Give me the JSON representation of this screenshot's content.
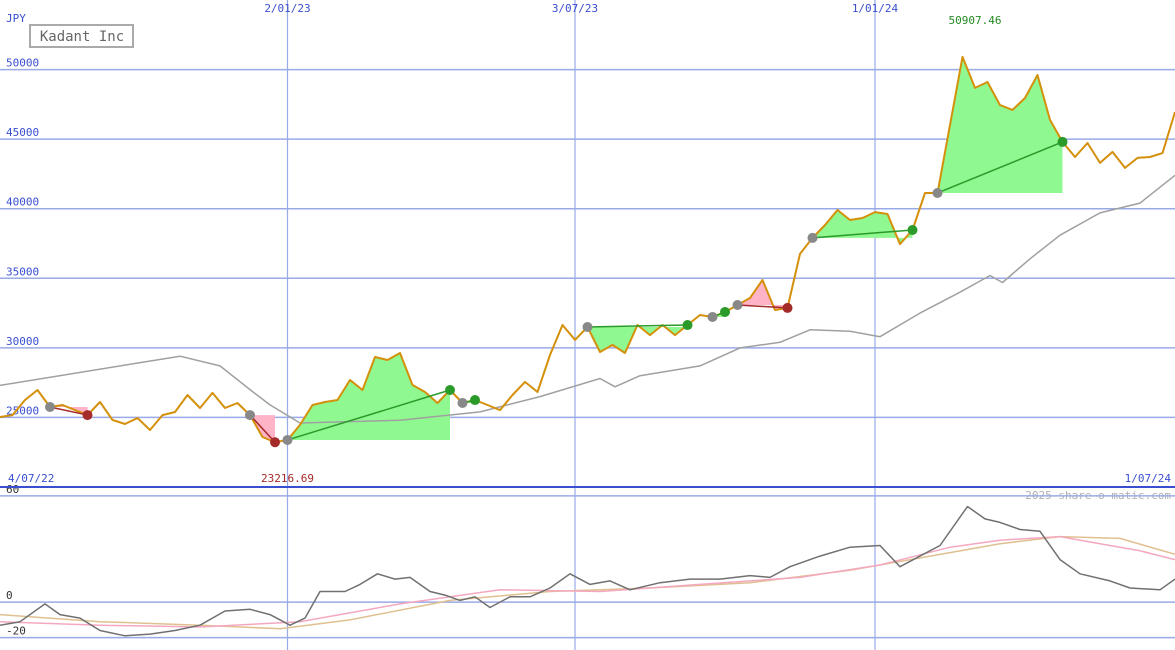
{
  "chart_data": [
    {
      "type": "line",
      "title": "Kadant Inc",
      "unit": "JPY",
      "xlim": [
        0,
        94
      ],
      "ylim": [
        20000,
        55000
      ],
      "yticks": [
        25000,
        30000,
        35000,
        40000,
        45000,
        50000
      ],
      "xticks": [
        {
          "value": 23,
          "label": "2/01/23"
        },
        {
          "value": 46,
          "label": "3/07/23"
        },
        {
          "value": 70,
          "label": "1/01/24"
        }
      ],
      "start_label": "4/07/22",
      "end_label": "1/07/24",
      "grid": true,
      "grid_color": "#9aaae8",
      "label_color": "#3a4fd0",
      "gain_color": "#90f890",
      "loss_color": "#ffb3c6",
      "gain_line": "#2a9a2a",
      "loss_line": "#a52a2a",
      "entry_color": "#888888",
      "series": [
        {
          "color": "#d4900a",
          "values": [
            25030,
            25170,
            26250,
            26970,
            25750,
            25890,
            25530,
            25170,
            26110,
            24820,
            24530,
            24960,
            24100,
            25170,
            25390,
            26610,
            25680,
            26760,
            25680,
            26040,
            25170,
            23590,
            23217,
            23380,
            24460,
            25890,
            26110,
            26250,
            27690,
            26970,
            29340,
            29130,
            29630,
            27330,
            26830,
            26040,
            26970,
            26040,
            26250,
            25890,
            25530,
            26610,
            27550,
            26830,
            29490,
            31640,
            30570,
            31500,
            29700,
            30210,
            29630,
            31640,
            30920,
            31640,
            30920,
            31640,
            32360,
            32220,
            32580,
            33080,
            33580,
            34880,
            32720,
            32870,
            36750,
            37900,
            38830,
            39910,
            39190,
            39330,
            39760,
            39620,
            37460,
            38470,
            41130,
            41130,
            46020,
            50910,
            48680,
            49110,
            47450,
            47100,
            47960,
            49610,
            46380,
            44800,
            43720,
            44720,
            43290,
            44080,
            42930,
            43650,
            43720,
            44000,
            46950
          ]
        },
        {
          "color": "#a0a0a0",
          "x": [
            0,
            14.4,
            17.6,
            20,
            21.6,
            24,
            32,
            38.4,
            43.2,
            48,
            49.2,
            51.2,
            56,
            59.2,
            62.4,
            64.8,
            68,
            70.4,
            73.6,
            76.8,
            79.2,
            80.2,
            82.4,
            84.8,
            88,
            91.2,
            94
          ],
          "values": [
            27300,
            29400,
            28700,
            27000,
            25900,
            24600,
            24800,
            25400,
            26500,
            27800,
            27200,
            28000,
            28700,
            30000,
            30400,
            31300,
            31200,
            30800,
            32500,
            34000,
            35200,
            34700,
            36400,
            38100,
            39700,
            40400,
            42400
          ]
        }
      ],
      "trades": [
        {
          "from": 4,
          "to": 7
        },
        {
          "from": 20,
          "to": 22
        },
        {
          "from": 23,
          "to": 36
        },
        {
          "from": 37,
          "to": 38
        },
        {
          "from": 47,
          "to": 55
        },
        {
          "from": 57,
          "to": 58
        },
        {
          "from": 59,
          "to": 63
        },
        {
          "from": 65,
          "to": 73
        },
        {
          "from": 75,
          "to": 85
        }
      ],
      "annotations": [
        {
          "text": "50907.46",
          "x": 78,
          "color": "#228b22",
          "position": "top"
        },
        {
          "text": "23216.69",
          "x": 23,
          "color": "#a52a2a",
          "position": "bottom"
        }
      ]
    },
    {
      "type": "line",
      "credit": "2025 share-o-matic.com",
      "xlim": [
        0,
        94
      ],
      "ylim": [
        -27,
        65
      ],
      "yticks": [
        60,
        0,
        -20
      ],
      "grid": true,
      "grid_color": "#9aaae8",
      "label_color": "#333333",
      "series": [
        {
          "color": "#707070",
          "x": [
            0,
            1.6,
            3.6,
            4.8,
            6.4,
            8,
            10,
            12,
            14,
            16,
            18,
            20,
            21.6,
            23.2,
            24.4,
            25.6,
            27.6,
            28.8,
            30.2,
            31.6,
            32.8,
            34.4,
            35.6,
            36.8,
            38,
            39.2,
            40.8,
            42.4,
            44,
            45.6,
            47.2,
            48.8,
            50.4,
            52.8,
            55.2,
            57.6,
            60,
            61.6,
            63.2,
            65.6,
            68,
            70.4,
            72,
            73.6,
            75.2,
            77.4,
            78.8,
            80,
            81.6,
            83.2,
            84.8,
            86.4,
            88.8,
            90.4,
            92.8,
            94
          ],
          "values": [
            -13,
            -11,
            -1,
            -7,
            -9,
            -16,
            -19,
            -18,
            -16,
            -13,
            -5,
            -4,
            -7,
            -13,
            -9,
            6,
            6,
            10,
            16,
            13,
            14,
            6,
            4,
            1,
            3,
            -3,
            3,
            3,
            8,
            16,
            10,
            12,
            7,
            11,
            13,
            13,
            15,
            14,
            20,
            26,
            31,
            32,
            20,
            26,
            32,
            54,
            47,
            45,
            41,
            40,
            24,
            16,
            12,
            8,
            7,
            13
          ]
        },
        {
          "color": "#f4a8c0",
          "x": [
            0,
            8,
            16,
            24,
            32,
            40,
            48,
            56,
            64,
            70.4,
            76,
            80,
            84.8,
            88,
            91.2,
            94
          ],
          "values": [
            -11,
            -13,
            -14,
            -11,
            -1,
            7,
            6,
            10,
            14,
            21,
            31,
            35,
            37,
            33,
            29,
            24
          ]
        },
        {
          "color": "#e0c090",
          "x": [
            0,
            8,
            16,
            22.4,
            28,
            36,
            44,
            52,
            60,
            68,
            76,
            80,
            84.8,
            89.6,
            94
          ],
          "values": [
            -7,
            -11,
            -13,
            -15,
            -10,
            1,
            6,
            8,
            11,
            18,
            28,
            33,
            37,
            36,
            27
          ]
        }
      ]
    }
  ]
}
